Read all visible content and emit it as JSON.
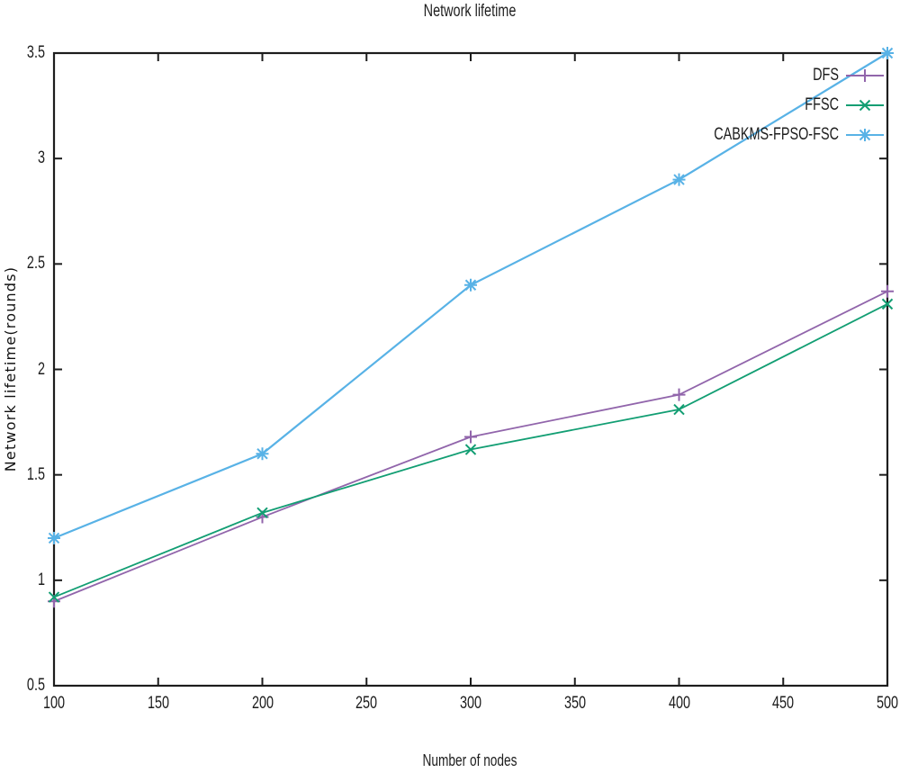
{
  "chart_data": {
    "type": "line",
    "title": "Network lifetime",
    "xlabel": "Number of nodes",
    "ylabel": "Network lifetime(rounds)",
    "x": [
      100,
      200,
      300,
      400,
      500
    ],
    "xlim": [
      100,
      500
    ],
    "ylim": [
      0.5,
      3.5
    ],
    "xticks": [
      100,
      150,
      200,
      250,
      300,
      350,
      400,
      450,
      500
    ],
    "yticks": [
      0.5,
      1,
      1.5,
      2,
      2.5,
      3,
      3.5
    ],
    "grid": false,
    "legend_position": "top-right-inside",
    "border_color": "#1d1d1d",
    "text_color": "#1d1d1d",
    "series": [
      {
        "name": "DFS",
        "marker": "plus",
        "color": "#9165ab",
        "values": [
          0.9,
          1.3,
          1.68,
          1.88,
          2.37
        ]
      },
      {
        "name": "FFSC",
        "marker": "cross",
        "color": "#129e73",
        "values": [
          0.92,
          1.32,
          1.62,
          1.81,
          2.31
        ]
      },
      {
        "name": "CABKMS-FPSO-FSC",
        "marker": "star",
        "color": "#58b2e6",
        "values": [
          1.2,
          1.6,
          2.4,
          2.9,
          3.5
        ]
      }
    ]
  }
}
